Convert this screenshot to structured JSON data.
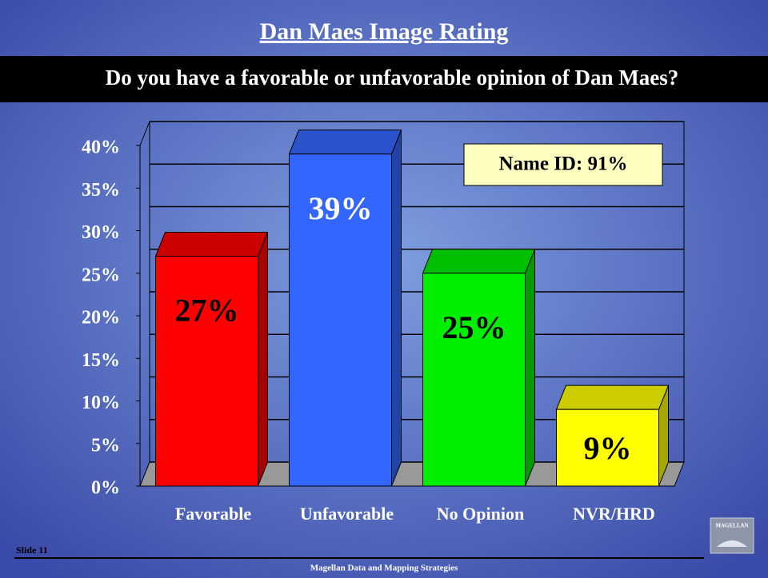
{
  "chart_data": {
    "type": "bar3d",
    "title": "Dan Maes Image Rating",
    "subtitle": "Do you have a favorable or unfavorable opinion of Dan Maes?",
    "categories": [
      "Favorable",
      "Unfavorable",
      "No Opinion",
      "NVR/HRD"
    ],
    "values": [
      27,
      39,
      25,
      9
    ],
    "value_labels": [
      "27%",
      "39%",
      "25%",
      "9%"
    ],
    "colors": [
      "#ff0000",
      "#3366ff",
      "#00ee00",
      "#ffff00"
    ],
    "ylim": [
      0,
      40
    ],
    "yticks": [
      {
        "value": 0,
        "label": "0%"
      },
      {
        "value": 5,
        "label": "5%"
      },
      {
        "value": 10,
        "label": "10%"
      },
      {
        "value": 15,
        "label": "15%"
      },
      {
        "value": 20,
        "label": "20%"
      },
      {
        "value": 25,
        "label": "25%"
      },
      {
        "value": 30,
        "label": "30%"
      },
      {
        "value": 35,
        "label": "35%"
      },
      {
        "value": 40,
        "label": "40%"
      }
    ],
    "grid": true,
    "annotation": "Name ID: 91%"
  },
  "footer": {
    "slide": "Slide 11",
    "source": "Magellan Data and Mapping Strategies",
    "logo": "MAGELLAN"
  }
}
